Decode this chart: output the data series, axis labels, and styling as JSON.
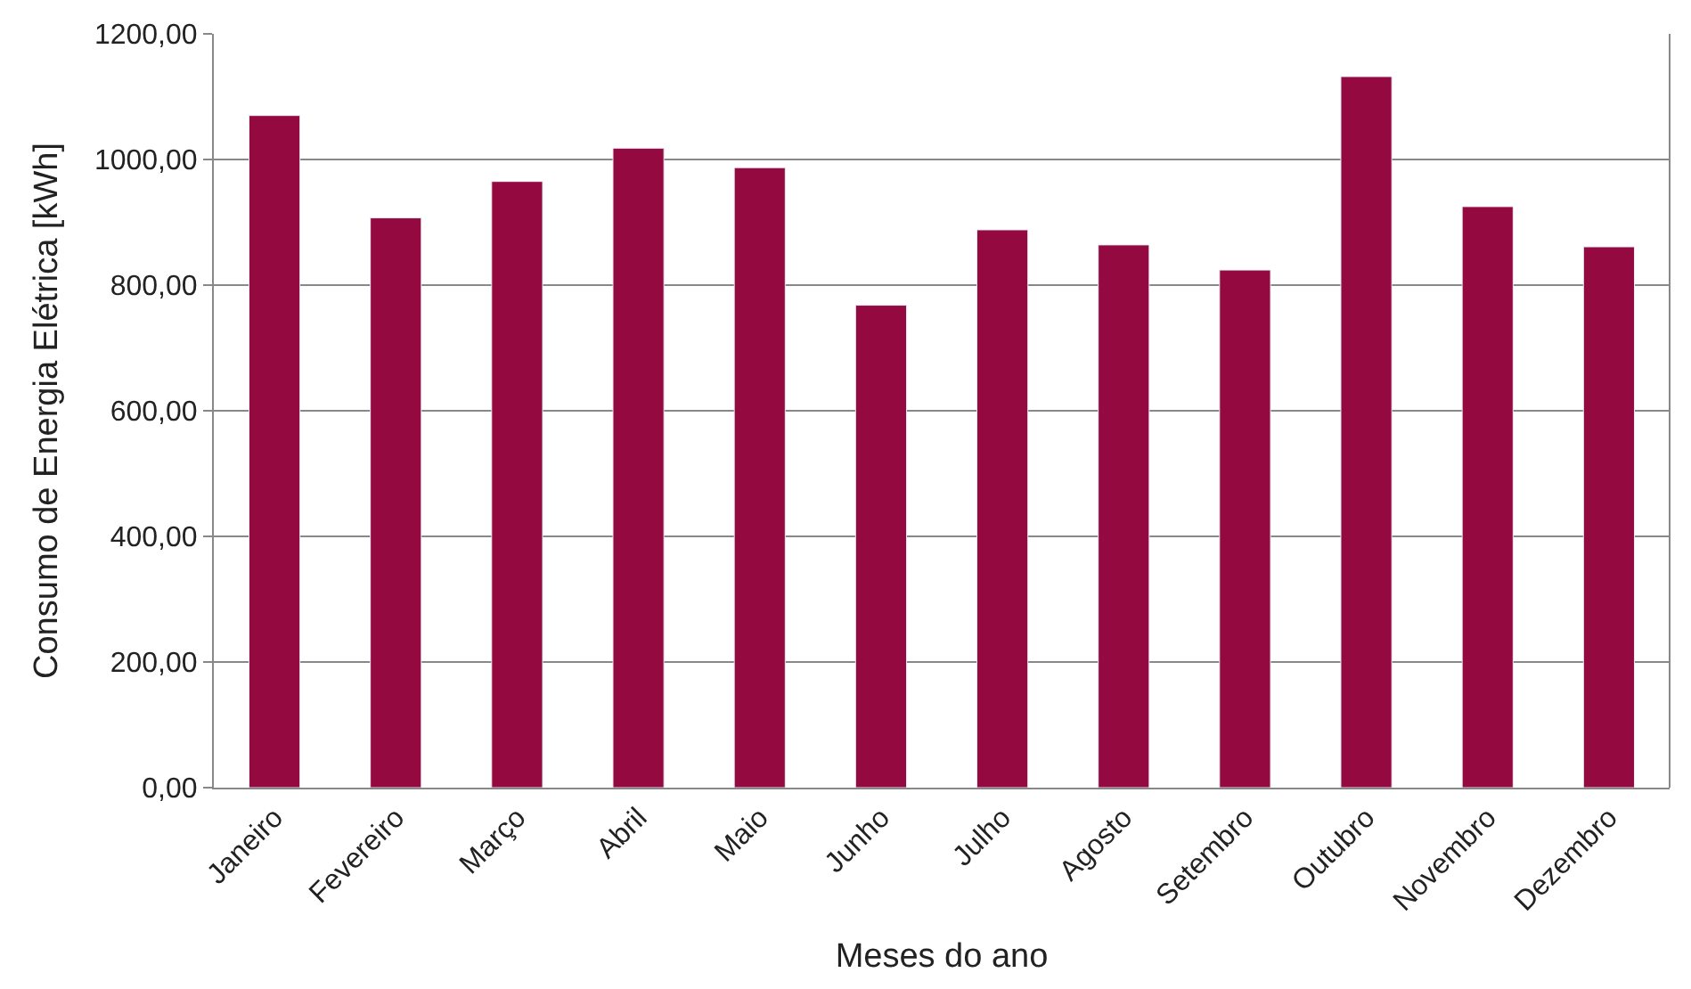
{
  "chart_data": {
    "type": "bar",
    "xlabel": "Meses do ano",
    "ylabel": "Consumo de Energia Elétrica [kWh]",
    "categories": [
      "Janeiro",
      "Fevereiro",
      "Março",
      "Abril",
      "Maio",
      "Junho",
      "Julho",
      "Agosto",
      "Setembro",
      "Outubro",
      "Novembro",
      "Dezembro"
    ],
    "values": [
      1070,
      907,
      965,
      1018,
      987,
      768,
      888,
      864,
      824,
      1132,
      925,
      861
    ],
    "color": "#940a40",
    "ylim": [
      0,
      1200
    ],
    "yticks": [
      {
        "value": 0,
        "label": "0,00"
      },
      {
        "value": 200,
        "label": "200,00"
      },
      {
        "value": 400,
        "label": "400,00"
      },
      {
        "value": 600,
        "label": "600,00"
      },
      {
        "value": 800,
        "label": "800,00"
      },
      {
        "value": 1000,
        "label": "1000,00"
      },
      {
        "value": 1200,
        "label": "1200,00"
      }
    ],
    "grid": "y"
  }
}
